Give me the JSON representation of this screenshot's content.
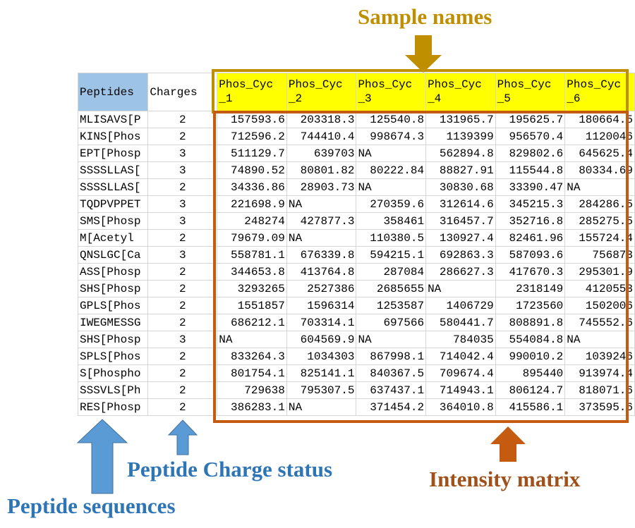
{
  "annotations": {
    "sample_names": "Sample names",
    "charge_status": "Peptide Charge status",
    "sequences": "Peptide sequences",
    "intensity_matrix": "Intensity matrix"
  },
  "table": {
    "header": [
      "Peptides",
      "Charges",
      "Phos_Cyc_1",
      "Phos_Cyc_2",
      "Phos_Cyc_3",
      "Phos_Cyc_4",
      "Phos_Cyc_5",
      "Phos_Cyc_6"
    ],
    "rows": [
      [
        "MLISAVS[P",
        "2",
        "157593.6",
        "203318.3",
        "125540.8",
        "131965.7",
        "195625.7",
        "180664.5"
      ],
      [
        "KINS[Phos",
        "2",
        "712596.2",
        "744410.4",
        "998674.3",
        "1139399",
        "956570.4",
        "1120046"
      ],
      [
        "EPT[Phosp",
        "3",
        "511129.7",
        "639703",
        "NA",
        "562894.8",
        "829802.6",
        "645625.4"
      ],
      [
        "SSSSLLAS[",
        "3",
        "74890.52",
        "80801.82",
        "80222.84",
        "88827.91",
        "115544.8",
        "80334.69"
      ],
      [
        "SSSSLLAS[",
        "2",
        "34336.86",
        "28903.73",
        "NA",
        "30830.68",
        "33390.47",
        "NA"
      ],
      [
        "TQDPVPPET",
        "3",
        "221698.9",
        "NA",
        "270359.6",
        "312614.6",
        "345215.3",
        "284286.5"
      ],
      [
        "SMS[Phosp",
        "3",
        "248274",
        "427877.3",
        "358461",
        "316457.7",
        "352716.8",
        "285275.5"
      ],
      [
        "M[Acetyl",
        "2",
        "79679.09",
        "NA",
        "110380.5",
        "130927.4",
        "82461.96",
        "155724.4"
      ],
      [
        "QNSLGC[Ca",
        "3",
        "558781.1",
        "676339.8",
        "594215.1",
        "692863.3",
        "587093.6",
        "756873"
      ],
      [
        "ASS[Phosp",
        "2",
        "344653.8",
        "413764.8",
        "287084",
        "286627.3",
        "417670.3",
        "295301.9"
      ],
      [
        "SHS[Phosp",
        "2",
        "3293265",
        "2527386",
        "2685655",
        "NA",
        "2318149",
        "4120553"
      ],
      [
        "GPLS[Phos",
        "2",
        "1551857",
        "1596314",
        "1253587",
        "1406729",
        "1723560",
        "1502006"
      ],
      [
        "IWEGMESSG",
        "2",
        "686212.1",
        "703314.1",
        "697566",
        "580441.7",
        "808891.8",
        "745552.6"
      ],
      [
        "SHS[Phosp",
        "3",
        "NA",
        "604569.9",
        "NA",
        "784035",
        "554084.8",
        "NA"
      ],
      [
        "SPLS[Phos",
        "2",
        "833264.3",
        "1034303",
        "867998.1",
        "714042.4",
        "990010.2",
        "1039246"
      ],
      [
        "S[Phospho",
        "2",
        "801754.1",
        "825141.1",
        "840367.5",
        "709674.4",
        "895440",
        "913974.4"
      ],
      [
        "SSSVLS[Ph",
        "2",
        "729638",
        "795307.5",
        "637437.1",
        "714943.1",
        "806124.7",
        "818071.6"
      ],
      [
        "RES[Phosp",
        "2",
        "386283.1",
        "NA",
        "371454.2",
        "364010.8",
        "415586.1",
        "373595.6"
      ]
    ]
  }
}
